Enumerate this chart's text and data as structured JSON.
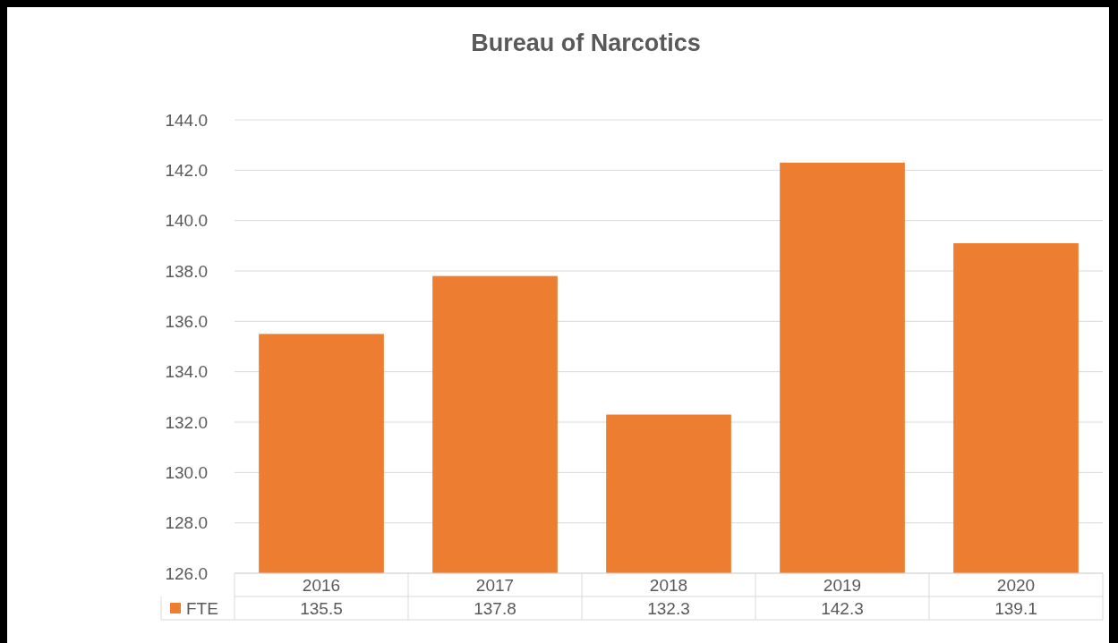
{
  "chart_data": {
    "type": "bar",
    "title": "Bureau of Narcotics",
    "categories": [
      "2016",
      "2017",
      "2018",
      "2019",
      "2020"
    ],
    "series": [
      {
        "name": "FTE",
        "color": "#ed7d31",
        "values": [
          135.5,
          137.8,
          132.3,
          142.3,
          139.1
        ]
      }
    ],
    "ylim": [
      126,
      144
    ],
    "yticks": [
      {
        "value": 126,
        "label": "126.0"
      },
      {
        "value": 128,
        "label": "128.0"
      },
      {
        "value": 130,
        "label": "130.0"
      },
      {
        "value": 132,
        "label": "132.0"
      },
      {
        "value": 134,
        "label": "134.0"
      },
      {
        "value": 136,
        "label": "136.0"
      },
      {
        "value": 138,
        "label": "138.0"
      },
      {
        "value": 140,
        "label": "140.0"
      },
      {
        "value": 142,
        "label": "142.0"
      },
      {
        "value": 144,
        "label": "144.0"
      }
    ],
    "grid": "y",
    "data_labels": true,
    "legend": "bottom left"
  }
}
